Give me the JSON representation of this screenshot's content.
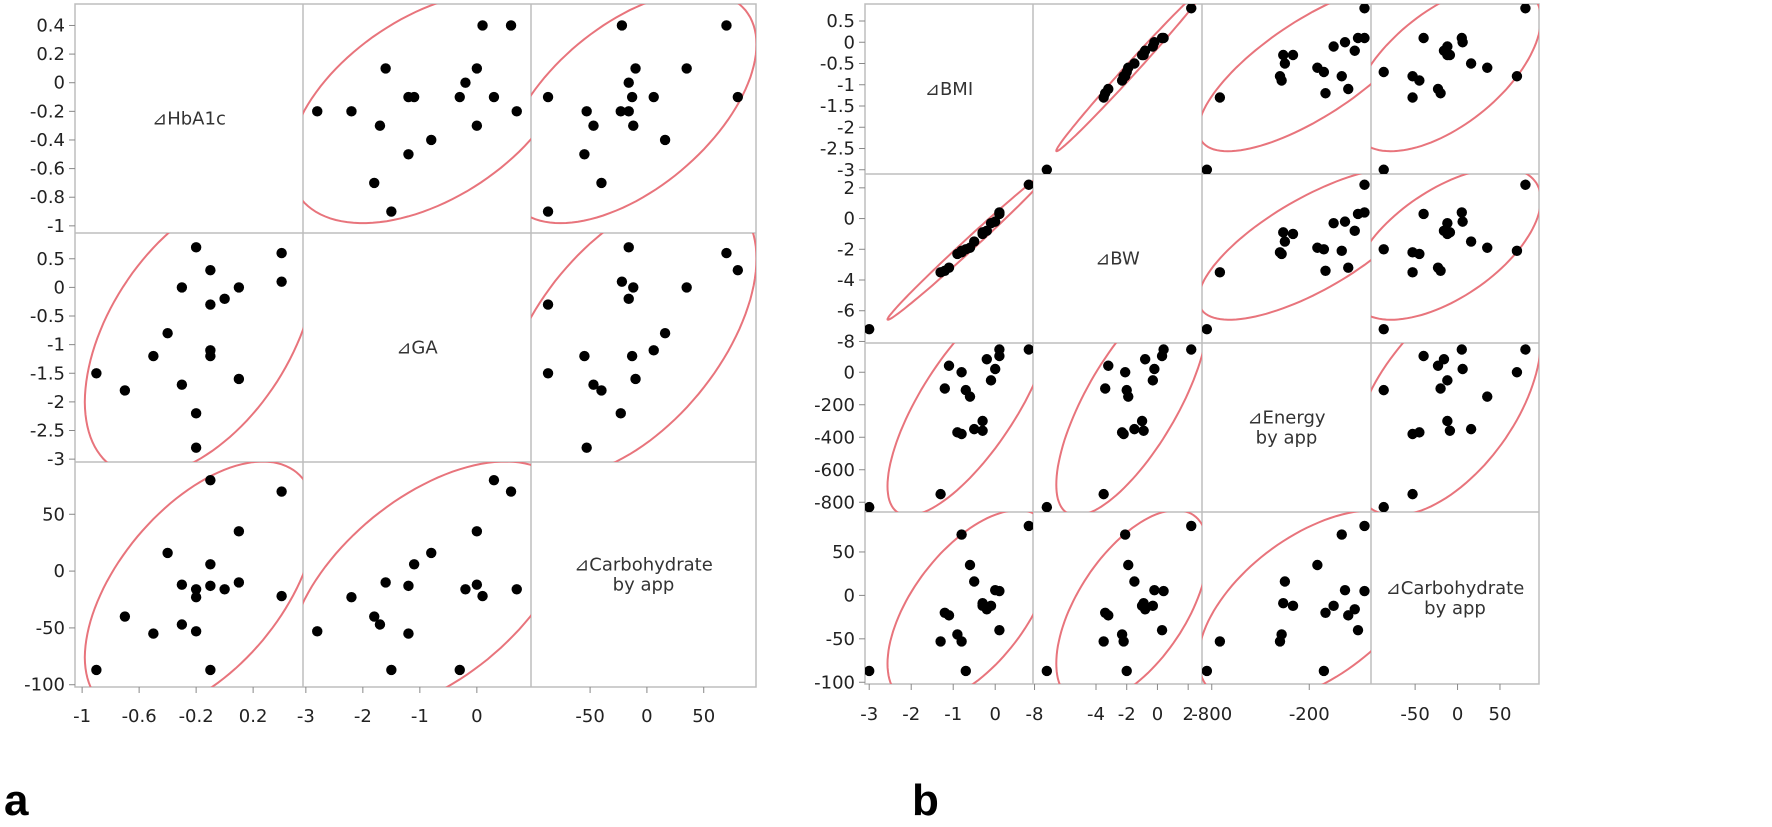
{
  "colors": {
    "ellipse": "#e8747c",
    "point": "#000000",
    "grid": "#bdbdbd",
    "tick": "#888888"
  },
  "chart_data": [
    {
      "type": "scatter",
      "panel": "a",
      "title": "",
      "variables": [
        {
          "label": [
            "⊿HbA1c"
          ],
          "range": [
            -1.05,
            0.55
          ],
          "ticks": [
            0.4,
            0.2,
            0,
            -0.2,
            -0.4,
            -0.6,
            -0.8,
            -1
          ]
        },
        {
          "label": [
            "⊿GA"
          ],
          "range": [
            -3.05,
            0.95
          ],
          "ticks": [
            0.5,
            0,
            -0.5,
            -1,
            -1.5,
            -2,
            -2.5,
            -3
          ]
        },
        {
          "label": [
            "⊿Carbohydrate",
            "by app"
          ],
          "range": [
            -102,
            96
          ],
          "ticks": [
            50,
            0,
            -50,
            -100
          ]
        }
      ],
      "x_axis_ticks": [
        [
          "-1",
          "-0.6",
          "-0.2",
          "0.2"
        ],
        [
          "-3",
          "-2",
          "-1",
          "0"
        ],
        [
          "-50",
          "0",
          "50"
        ]
      ],
      "x_axis_tick_values": [
        [
          -1,
          -0.6,
          -0.2,
          0.2
        ],
        [
          -3,
          -2,
          -1,
          0
        ],
        [
          -50,
          0,
          50
        ]
      ],
      "y_axis_ticks": [
        [
          "0.4",
          "0.2",
          "0",
          "-0.2",
          "-0.4",
          "-0.6",
          "-0.8",
          "-1"
        ],
        [
          "0.5",
          "0",
          "-0.5",
          "-1",
          "-1.5",
          "-2",
          "-2.5",
          "-3"
        ],
        [
          "50",
          "0",
          "-50",
          "-100"
        ]
      ],
      "points": [
        [
          -0.9,
          -1.5,
          -87
        ],
        [
          -0.7,
          -1.8,
          -40
        ],
        [
          -0.5,
          -1.2,
          -55
        ],
        [
          -0.4,
          -0.8,
          16
        ],
        [
          -0.3,
          -1.7,
          -47
        ],
        [
          -0.3,
          0.0,
          -12
        ],
        [
          -0.2,
          -2.8,
          -53
        ],
        [
          -0.2,
          -2.2,
          -23
        ],
        [
          -0.2,
          0.7,
          -16
        ],
        [
          -0.1,
          -1.1,
          6
        ],
        [
          -0.1,
          -1.2,
          -13
        ],
        [
          -0.1,
          -0.3,
          -87
        ],
        [
          -0.1,
          0.3,
          80
        ],
        [
          0.0,
          -0.2,
          -16
        ],
        [
          0.1,
          -1.6,
          -10
        ],
        [
          0.1,
          0.0,
          35
        ],
        [
          0.4,
          0.6,
          70
        ],
        [
          0.4,
          0.1,
          -22
        ]
      ]
    },
    {
      "type": "scatter",
      "panel": "b",
      "title": "",
      "variables": [
        {
          "label": [
            "⊿BMI"
          ],
          "range": [
            -3.1,
            0.9
          ],
          "ticks": [
            0.5,
            0,
            -0.5,
            -1,
            -1.5,
            -2,
            -2.5,
            -3
          ]
        },
        {
          "label": [
            "⊿BW"
          ],
          "range": [
            -8.1,
            2.9
          ],
          "ticks": [
            2,
            0,
            -2,
            -4,
            -6,
            -8
          ]
        },
        {
          "label": [
            "⊿Energy",
            "by app"
          ],
          "range": [
            -860,
            180
          ],
          "ticks": [
            0,
            -200,
            -400,
            -600,
            -800
          ]
        },
        {
          "label": [
            "⊿Carbohydrate",
            "by app"
          ],
          "range": [
            -102,
            96
          ],
          "ticks": [
            50,
            0,
            -50,
            -100
          ]
        }
      ],
      "x_axis_ticks": [
        [
          "-3",
          "-2",
          "-1",
          "0"
        ],
        [
          "-8",
          "-4",
          "-2",
          "0",
          "2"
        ],
        [
          "-800",
          "-200"
        ],
        [
          "-50",
          "0",
          "50"
        ]
      ],
      "x_axis_tick_values": [
        [
          -3,
          -2,
          -1,
          0
        ],
        [
          -8,
          -4,
          -2,
          0,
          2
        ],
        [
          -800,
          -200
        ],
        [
          -50,
          0,
          50
        ]
      ],
      "y_axis_ticks": [
        [
          "0.5",
          "0",
          "-0.5",
          "-1",
          "-1.5",
          "-2",
          "-2.5",
          "-3"
        ],
        [
          "2",
          "0",
          "-2",
          "-4",
          "-6",
          "-8"
        ],
        [
          "0",
          "-200",
          "-400",
          "-600",
          "-800"
        ],
        [
          "50",
          "0",
          "-50",
          "-100"
        ]
      ],
      "points": [
        [
          -3.0,
          -7.2,
          -830,
          -87
        ],
        [
          -1.3,
          -3.5,
          -750,
          -53
        ],
        [
          -1.2,
          -3.4,
          -100,
          -20
        ],
        [
          -1.1,
          -3.2,
          40,
          -23
        ],
        [
          -0.9,
          -2.3,
          -370,
          -45
        ],
        [
          -0.8,
          -2.2,
          -380,
          -53
        ],
        [
          -0.8,
          -2.1,
          0,
          70
        ],
        [
          -0.7,
          -2.0,
          -110,
          -87
        ],
        [
          -0.6,
          -1.9,
          -150,
          35
        ],
        [
          -0.5,
          -1.5,
          -350,
          16
        ],
        [
          -0.3,
          -1.0,
          -300,
          -12
        ],
        [
          -0.3,
          -0.9,
          -360,
          -9
        ],
        [
          -0.2,
          -0.8,
          80,
          -16
        ],
        [
          -0.1,
          -0.3,
          -50,
          -12
        ],
        [
          0.0,
          -0.2,
          20,
          6
        ],
        [
          0.1,
          0.3,
          100,
          -40
        ],
        [
          0.1,
          0.4,
          140,
          5
        ],
        [
          0.8,
          2.2,
          140,
          80
        ]
      ]
    }
  ],
  "panel_labels": {
    "a": "a",
    "b": "b"
  }
}
